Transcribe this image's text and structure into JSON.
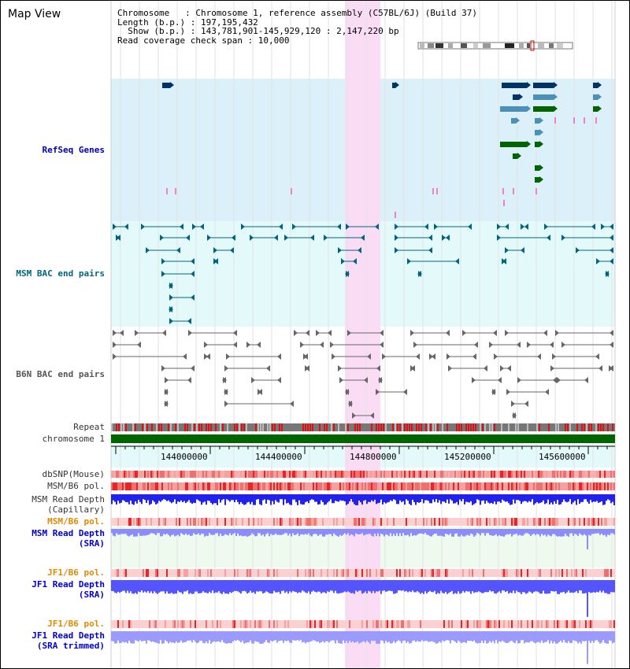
{
  "title": "Map View",
  "info": {
    "chromosome": "Chromosome   : Chromosome 1, reference assembly (C57BL/6J) (Build 37)",
    "length": "Length (b.p.) : 197,195,432",
    "show": "  Show (b.p.) : 143,781,901-145,929,120 : 2,147,220 bp",
    "coverage": "Read coverage check span : 10,000"
  },
  "tracks": {
    "refseq": "RefSeq Genes",
    "msm_bac": "MSM BAC end pairs",
    "b6n_bac": "B6N BAC end pairs",
    "repeat": "Repeat",
    "chromosome": "chromosome 1",
    "dbsnp": "dbSNP(Mouse)",
    "msm_b6_pol_1": "MSM/B6 pol.",
    "msm_read_depth_cap_1": "MSM Read Depth",
    "msm_read_depth_cap_2": "(Capillary)",
    "msm_b6_pol_2": "MSM/B6 pol.",
    "msm_read_depth_sra_1": "MSM Read Depth",
    "msm_read_depth_sra_2": "(SRA)",
    "jf1_b6_pol_1": "JF1/B6 pol.",
    "jf1_read_depth_sra_1": "JF1 Read Depth",
    "jf1_read_depth_sra_2": "(SRA)",
    "jf1_b6_pol_2": "JF1/B6 pol.",
    "jf1_read_depth_trim_1": "JF1 Read Depth",
    "jf1_read_depth_trim_2": "(SRA trimmed)"
  },
  "axis": {
    "ticks": [
      "144000000",
      "144400000",
      "144800000",
      "145200000",
      "145600000"
    ]
  },
  "colors": {
    "refseq_bg": "#dcf0fa",
    "msm_bg": "#e4fafa",
    "highlight": "#fadcf5",
    "chromosome": "#006400",
    "gene_navy": "#003366",
    "gene_teal": "#4a90b8",
    "gene_green": "#006400",
    "msm_pair": "#006680",
    "b6n_pair": "#666666",
    "depth_blue": "#3333ff",
    "depth_light": "#8c8cff"
  }
}
